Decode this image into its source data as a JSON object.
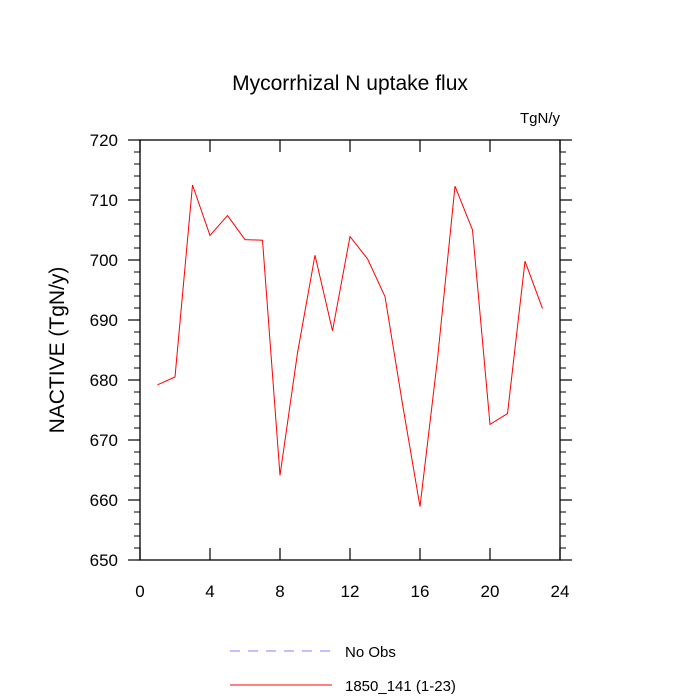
{
  "chart_data": {
    "type": "line",
    "title": "Mycorrhizal N uptake flux",
    "units_label": "TgN/y",
    "ylabel": "NACTIVE  (TgN/y)",
    "xlabel": "",
    "xlim": [
      0,
      24
    ],
    "ylim": [
      650,
      720
    ],
    "x_ticks": [
      0,
      4,
      8,
      12,
      16,
      20,
      24
    ],
    "x_tick_labels": [
      "0",
      "4",
      "8",
      "12",
      "16",
      "20",
      "24"
    ],
    "y_ticks": [
      650,
      660,
      670,
      680,
      690,
      700,
      710,
      720
    ],
    "y_tick_labels": [
      "650",
      "660",
      "670",
      "680",
      "690",
      "700",
      "710",
      "720"
    ],
    "grid": false,
    "legend_position": "bottom",
    "series": [
      {
        "name": "1850_141 (1-23)",
        "color": "#ff0000",
        "style": "solid",
        "x": [
          1,
          2,
          3,
          4,
          5,
          6,
          7,
          8,
          9,
          10,
          11,
          12,
          13,
          14,
          15,
          16,
          17,
          18,
          19,
          20,
          21,
          22,
          23
        ],
        "y": [
          679.2,
          680.5,
          712.5,
          704.1,
          707.4,
          703.4,
          703.3,
          664.1,
          684.5,
          700.8,
          688.2,
          703.9,
          700.2,
          693.9,
          676.0,
          658.9,
          683.5,
          712.3,
          705.0,
          672.6,
          674.4,
          699.8,
          691.9
        ]
      },
      {
        "name": "No Obs",
        "color": "#8080ff",
        "style": "dashed",
        "x": [],
        "y": []
      }
    ]
  }
}
